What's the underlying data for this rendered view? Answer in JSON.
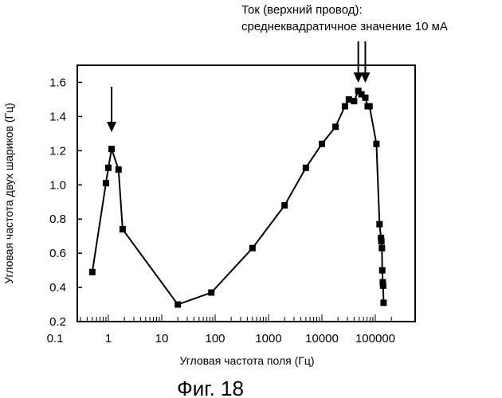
{
  "chart_data": {
    "type": "scatter",
    "title": "",
    "xlabel": "Угловая частота поля (Гц)",
    "ylabel": "Угловая частота двух шариков (Гц)",
    "xscale": "log",
    "xlim": [
      0.1,
      200000
    ],
    "ylim": [
      0.2,
      1.7
    ],
    "x_tick_labels": [
      "0.1",
      "1",
      "10",
      "100",
      "1000",
      "10000",
      "100000"
    ],
    "y_tick_labels": [
      "0.2",
      "0.4",
      "0.6",
      "0.8",
      "1.0",
      "1.2",
      "1.4",
      "1.6"
    ],
    "series": [
      {
        "color": "#000000",
        "marker": "square",
        "points": [
          {
            "x": 0.5,
            "y": 0.49
          },
          {
            "x": 0.9,
            "y": 1.01
          },
          {
            "x": 1.0,
            "y": 1.1
          },
          {
            "x": 1.15,
            "y": 1.21
          },
          {
            "x": 1.55,
            "y": 1.09
          },
          {
            "x": 1.85,
            "y": 0.74
          },
          {
            "x": 20,
            "y": 0.3
          },
          {
            "x": 85,
            "y": 0.37
          },
          {
            "x": 500,
            "y": 0.63
          },
          {
            "x": 2000,
            "y": 0.88
          },
          {
            "x": 5000,
            "y": 1.1
          },
          {
            "x": 10000,
            "y": 1.24
          },
          {
            "x": 18000,
            "y": 1.34
          },
          {
            "x": 27000,
            "y": 1.46
          },
          {
            "x": 32000,
            "y": 1.5
          },
          {
            "x": 40000,
            "y": 1.49
          },
          {
            "x": 48000,
            "y": 1.55
          },
          {
            "x": 55000,
            "y": 1.53
          },
          {
            "x": 65000,
            "y": 1.51
          },
          {
            "x": 72000,
            "y": 1.46
          },
          {
            "x": 78000,
            "y": 1.46
          },
          {
            "x": 105000,
            "y": 1.24
          },
          {
            "x": 120000,
            "y": 0.77
          },
          {
            "x": 128000,
            "y": 0.69
          },
          {
            "x": 130000,
            "y": 0.67
          },
          {
            "x": 133000,
            "y": 0.63
          },
          {
            "x": 135000,
            "y": 0.5
          },
          {
            "x": 138000,
            "y": 0.43
          },
          {
            "x": 140000,
            "y": 0.41
          },
          {
            "x": 143000,
            "y": 0.31
          }
        ]
      }
    ],
    "arrows_at_x": [
      1.15,
      48000,
      65000
    ],
    "annotation": {
      "line1": "Ток (верхний провод):",
      "line2": "среднеквадратичное значение 10 мА"
    },
    "grid": false
  },
  "caption": "Фиг. 18"
}
